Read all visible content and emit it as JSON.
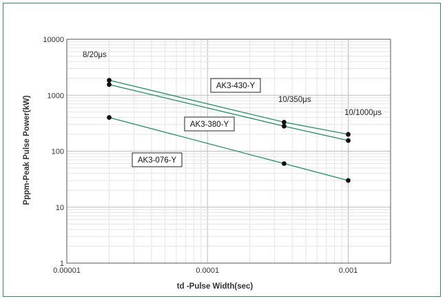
{
  "chart_data": {
    "type": "line",
    "xscale": "log",
    "yscale": "log",
    "xlim": [
      1e-05,
      0.002
    ],
    "ylim": [
      1,
      10000
    ],
    "xlabel": "td -Pulse Width(sec)",
    "ylabel": "Pppm-Peak Pulse Power(kW)",
    "x_ticks": [
      {
        "value": 1e-05,
        "label": "0.00001"
      },
      {
        "value": 0.0001,
        "label": "0.0001"
      },
      {
        "value": 0.001,
        "label": "0.001"
      }
    ],
    "y_ticks": [
      {
        "value": 1,
        "label": "1"
      },
      {
        "value": 10,
        "label": "10"
      },
      {
        "value": 100,
        "label": "100"
      },
      {
        "value": 1000,
        "label": "1000"
      },
      {
        "value": 10000,
        "label": "10000"
      }
    ],
    "grid": true,
    "series_color": "#1f8f5f",
    "series": [
      {
        "name": "AK3-430-Y",
        "x": [
          2e-05,
          0.00035,
          0.001
        ],
        "y": [
          1850,
          330,
          200
        ]
      },
      {
        "name": "AK3-380-Y",
        "x": [
          2e-05,
          0.00035,
          0.001
        ],
        "y": [
          1550,
          280,
          155
        ]
      },
      {
        "name": "AK3-076-Y",
        "x": [
          2e-05,
          0.00035,
          0.001
        ],
        "y": [
          400,
          60,
          30
        ]
      }
    ],
    "annotations": [
      "8/20μs",
      "10/350μs",
      "10/1000μs"
    ]
  }
}
